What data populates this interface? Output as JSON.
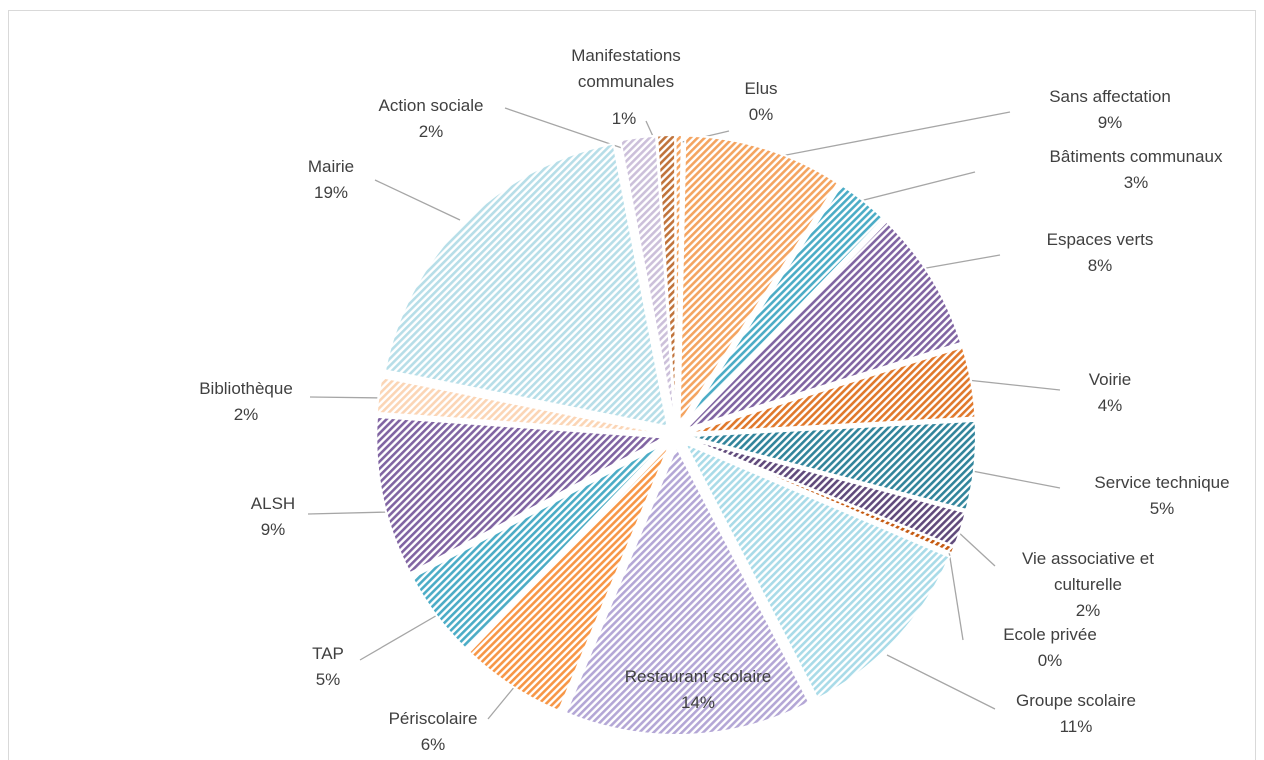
{
  "chart_data": {
    "type": "pie",
    "title": "",
    "exploded": true,
    "fill_pattern": "diagonal-hatch",
    "slices": [
      {
        "label": "Sans affectation",
        "value": 9,
        "display": "9%",
        "color": "#f4a460"
      },
      {
        "label": "Bâtiments communaux",
        "value": 3,
        "display": "3%",
        "color": "#4bacc6"
      },
      {
        "label": "Espaces verts",
        "value": 8,
        "display": "8%",
        "color": "#8064a2"
      },
      {
        "label": "Voirie",
        "value": 4,
        "display": "4%",
        "color": "#e0782b"
      },
      {
        "label": "Service technique",
        "value": 5,
        "display": "5%",
        "color": "#31849b"
      },
      {
        "label": "Vie associative et culturelle",
        "value": 2,
        "display": "2%",
        "color": "#604a7b"
      },
      {
        "label": "Ecole privée",
        "value": 0,
        "display": "0%",
        "color": "#c55a11"
      },
      {
        "label": "Groupe scolaire",
        "value": 11,
        "display": "11%",
        "color": "#a9dbe8"
      },
      {
        "label": "Restaurant scolaire",
        "value": 14,
        "display": "14%",
        "color": "#b4a7d6"
      },
      {
        "label": "Périscolaire",
        "value": 6,
        "display": "6%",
        "color": "#f79646"
      },
      {
        "label": "TAP",
        "value": 5,
        "display": "5%",
        "color": "#4bacc6"
      },
      {
        "label": "ALSH",
        "value": 9,
        "display": "9%",
        "color": "#8064a2"
      },
      {
        "label": "Bibliothèque",
        "value": 2,
        "display": "2%",
        "color": "#fbd5b5"
      },
      {
        "label": "Mairie",
        "value": 19,
        "display": "19%",
        "color": "#b7dee8"
      },
      {
        "label": "Action sociale",
        "value": 2,
        "display": "2%",
        "color": "#ccc0da"
      },
      {
        "label": "Manifestations communales",
        "value": 1,
        "display": "1%",
        "color": "#c0733b"
      },
      {
        "label": "Elus",
        "value": 0,
        "display": "0%",
        "color": "#f4a460"
      }
    ]
  }
}
